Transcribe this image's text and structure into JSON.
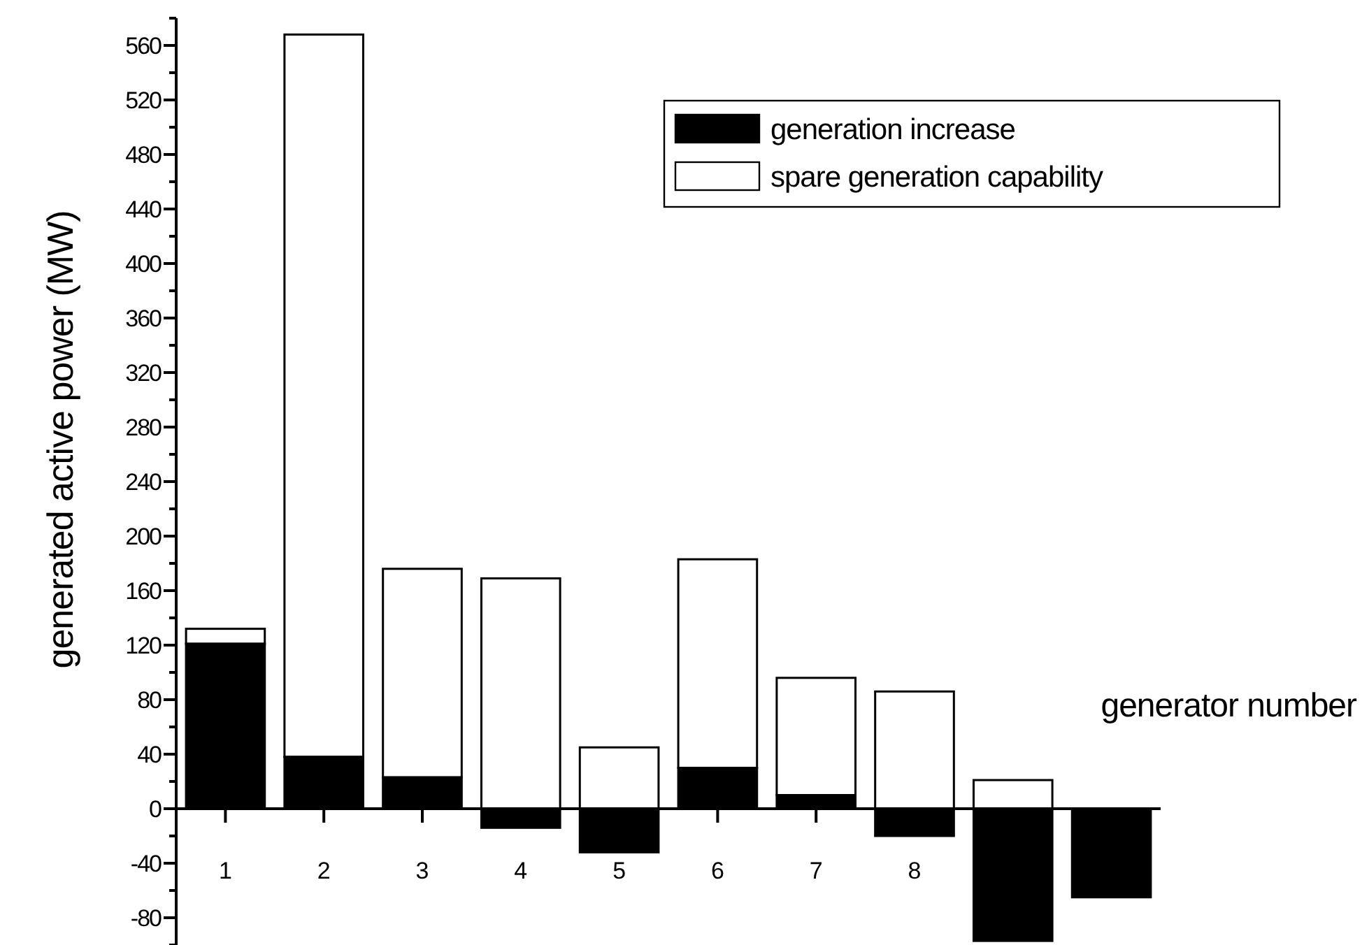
{
  "chart_data": {
    "type": "bar",
    "xlabel": "generator number",
    "ylabel": "generated active power (MW)",
    "categories": [
      "1",
      "2",
      "3",
      "4",
      "5",
      "6",
      "7",
      "8",
      null,
      null
    ],
    "series": [
      {
        "name": "generation increase",
        "color": "#000000",
        "values": [
          121,
          38,
          23,
          -14,
          -32,
          30,
          10,
          -20,
          -97,
          -65
        ]
      },
      {
        "name": "spare generation capability",
        "color": "#ffffff",
        "values": [
          11,
          530,
          153,
          169,
          45,
          153,
          86,
          86,
          21,
          null
        ]
      }
    ],
    "stacked": true,
    "ylim": [
      -100,
      580
    ],
    "yticks": [
      {
        "value": -100,
        "label": null
      },
      -80,
      {
        "value": -60,
        "label": null
      },
      -40,
      {
        "value": -20,
        "label": null
      },
      0,
      {
        "value": 20,
        "label": null
      },
      40,
      {
        "value": 60,
        "label": null
      },
      80,
      {
        "value": 100,
        "label": null
      },
      120,
      {
        "value": 140,
        "label": null
      },
      160,
      {
        "value": 180,
        "label": null
      },
      200,
      {
        "value": 220,
        "label": null
      },
      240,
      {
        "value": 260,
        "label": null
      },
      280,
      {
        "value": 300,
        "label": null
      },
      320,
      {
        "value": 340,
        "label": null
      },
      360,
      {
        "value": 380,
        "label": null
      },
      400,
      {
        "value": 420,
        "label": null
      },
      440,
      {
        "value": 460,
        "label": null
      },
      480,
      {
        "value": 500,
        "label": null
      },
      520,
      {
        "value": 540,
        "label": null
      },
      560,
      {
        "value": 580,
        "label": null
      }
    ],
    "legend": "top right",
    "grid": false
  }
}
